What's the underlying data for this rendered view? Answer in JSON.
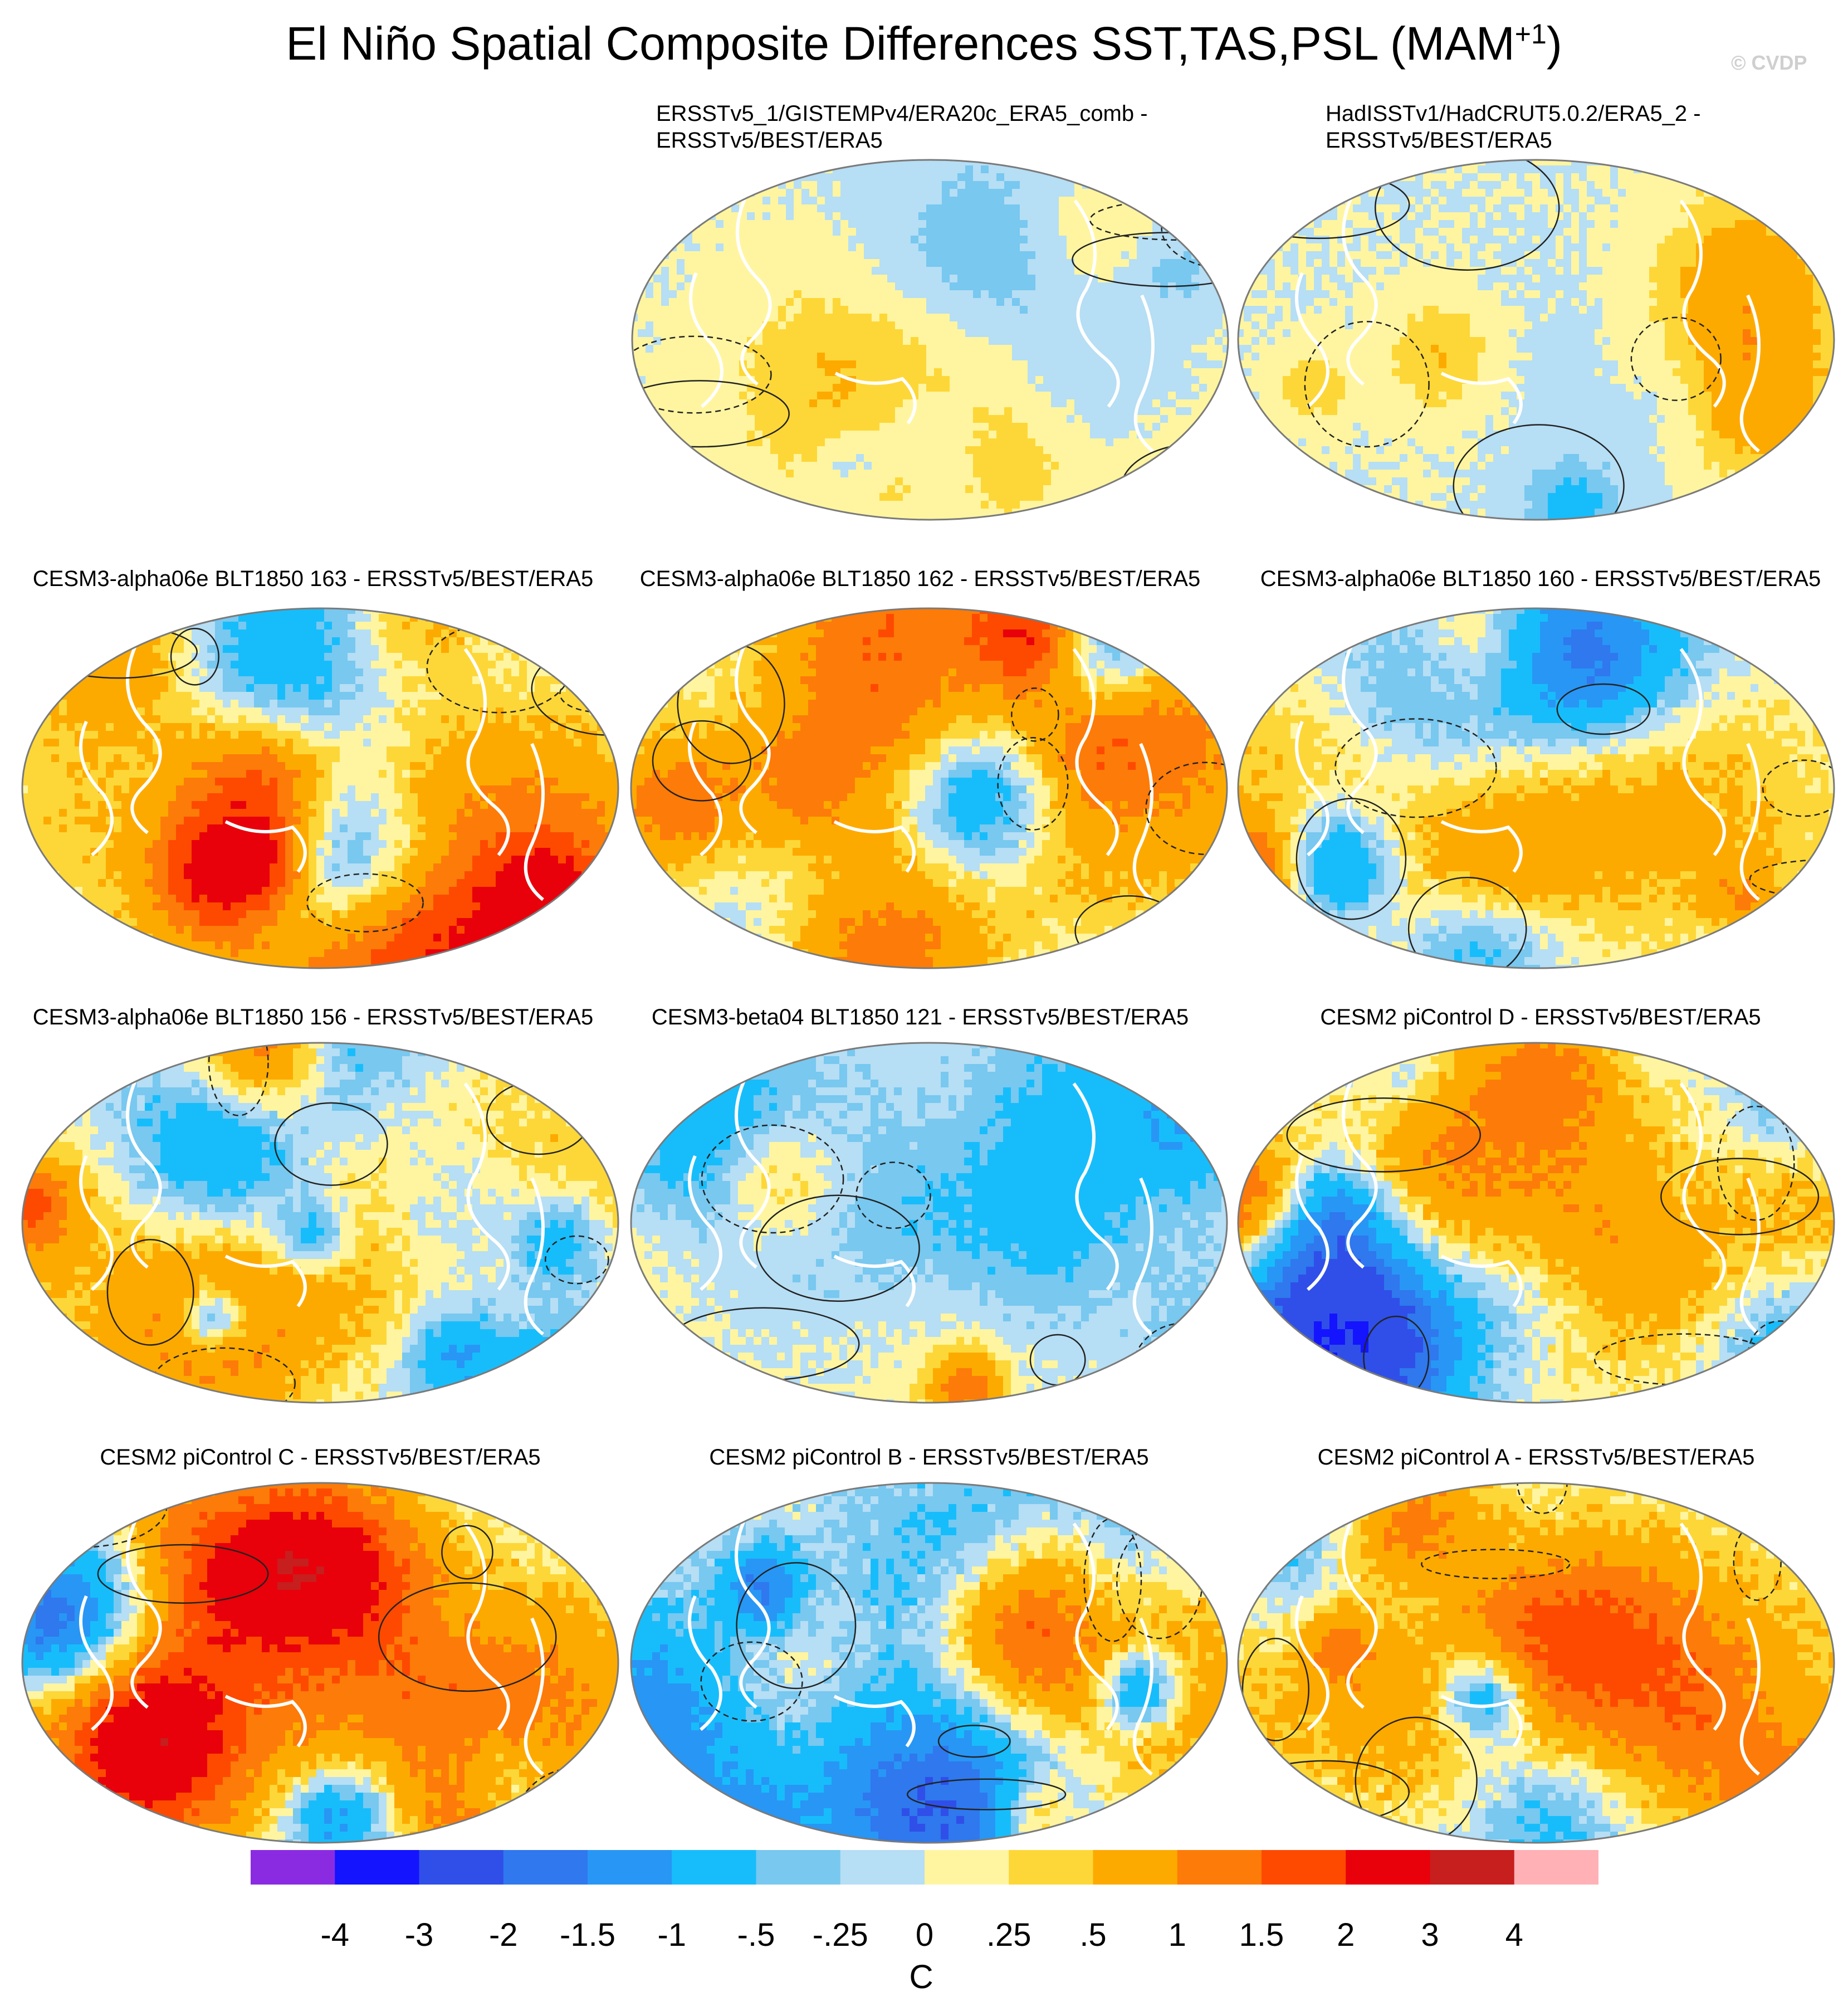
{
  "figure": {
    "title_main": "El Niño Spatial Composite Differences SST,TAS,PSL (MAM",
    "title_sup": "+1",
    "title_close": ")",
    "watermark": "© CVDP"
  },
  "colors": {
    "levels": [
      "#8a2be2",
      "#1414ff",
      "#2f4fe8",
      "#2f78ee",
      "#2896f5",
      "#17bdfb",
      "#78c8f0",
      "#b6def4",
      "#fff5a0",
      "#fdd738",
      "#fdaa00",
      "#fd7b08",
      "#fd4a00",
      "#e8000a",
      "#c71e1e",
      "#ffb1b6"
    ],
    "ocean_base": "#fff5a0",
    "coast": "#ffffff",
    "contour": "#222222",
    "outline": "#7a7a7a"
  },
  "chart_data": {
    "type": "heatmap",
    "title": "El Niño Spatial Composite Differences SST,TAS,PSL (MAM+1)",
    "colorbar": {
      "units": "C",
      "tick_labels": [
        "-4",
        "-3",
        "-2",
        "-1.5",
        "-1",
        "-.5",
        "-.25",
        "0",
        ".25",
        ".5",
        "1",
        "1.5",
        "2",
        "3",
        "4"
      ],
      "bounds": [
        -4,
        -3,
        -2,
        -1.5,
        -1,
        -0.5,
        -0.25,
        0,
        0.25,
        0.5,
        1,
        1.5,
        2,
        3,
        4
      ]
    },
    "panels": [
      {
        "id": "p-ersst-gistemp",
        "title_lines": [
          "ERSSTv5_1/GISTEMPv4/ERA20c_ERA5_comb -",
          "ERSSTv5/BEST/ERA5"
        ],
        "amplitude": 0.25,
        "seed": 11
      },
      {
        "id": "p-hadisst",
        "title_lines": [
          "HadISSTv1/HadCRUT5.0.2/ERA5_2 -",
          "ERSSTv5/BEST/ERA5"
        ],
        "amplitude": 0.3,
        "seed": 23
      },
      {
        "id": "p-alpha163",
        "title_lines": [
          "CESM3-alpha06e BLT1850 163 - ERSSTv5/BEST/ERA5"
        ],
        "amplitude": 0.7,
        "seed": 37
      },
      {
        "id": "p-alpha162",
        "title_lines": [
          "CESM3-alpha06e BLT1850 162 - ERSSTv5/BEST/ERA5"
        ],
        "amplitude": 0.8,
        "seed": 41
      },
      {
        "id": "p-alpha160",
        "title_lines": [
          "CESM3-alpha06e BLT1850 160 - ERSSTv5/BEST/ERA5"
        ],
        "amplitude": 0.7,
        "seed": 53
      },
      {
        "id": "p-alpha156",
        "title_lines": [
          "CESM3-alpha06e BLT1850 156 - ERSSTv5/BEST/ERA5"
        ],
        "amplitude": 0.75,
        "seed": 67
      },
      {
        "id": "p-beta121",
        "title_lines": [
          "CESM3-beta04 BLT1850 121 - ERSSTv5/BEST/ERA5"
        ],
        "amplitude": 0.6,
        "seed": 71
      },
      {
        "id": "p-cesm2-d",
        "title_lines": [
          "CESM2 piControl D - ERSSTv5/BEST/ERA5"
        ],
        "amplitude": 0.9,
        "seed": 83
      },
      {
        "id": "p-cesm2-c",
        "title_lines": [
          "CESM2 piControl C - ERSSTv5/BEST/ERA5"
        ],
        "amplitude": 1.0,
        "seed": 97
      },
      {
        "id": "p-cesm2-b",
        "title_lines": [
          "CESM2 piControl B - ERSSTv5/BEST/ERA5"
        ],
        "amplitude": 1.0,
        "seed": 101
      },
      {
        "id": "p-cesm2-a",
        "title_lines": [
          "CESM2 piControl A - ERSSTv5/BEST/ERA5"
        ],
        "amplitude": 0.95,
        "seed": 113
      }
    ]
  }
}
